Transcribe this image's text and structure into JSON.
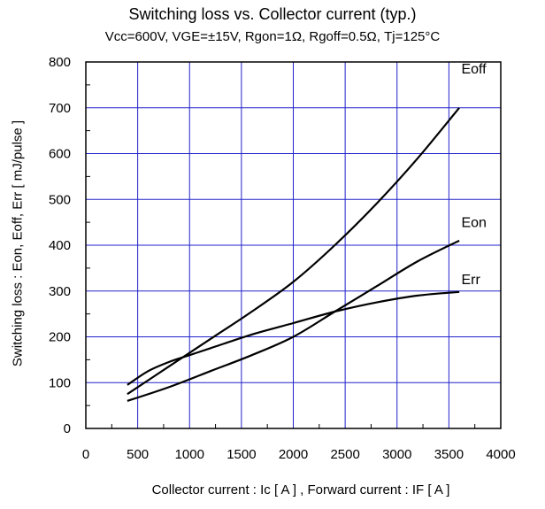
{
  "chart_data": {
    "type": "line",
    "title": "Switching loss  vs.  Collector current  (typ.)",
    "subtitle": "Vcc=600V, VGE=±15V, Rgon=1Ω, Rgoff=0.5Ω, Tj=125°C",
    "xlabel": "Collector current  :  Ic  [ A ] , Forward current  :  IF  [ A ]",
    "ylabel": "Switching loss  :  Eon, Eoff, Err  [ mJ/pulse ]",
    "xlim": [
      0,
      4000
    ],
    "ylim": [
      0,
      800
    ],
    "xticks": [
      0,
      500,
      1000,
      1500,
      2000,
      2500,
      3000,
      3500,
      4000
    ],
    "yticks": [
      0,
      100,
      200,
      300,
      400,
      500,
      600,
      700,
      800
    ],
    "grid": true,
    "colors": {
      "grid": "#2222cc",
      "line": "#000000"
    },
    "series": [
      {
        "name": "Eoff",
        "x": [
          400,
          800,
          1200,
          1600,
          2000,
          2400,
          2800,
          3200,
          3600
        ],
        "y": [
          75,
          135,
          195,
          255,
          320,
          400,
          490,
          590,
          700
        ],
        "label_pos": [
          3620,
          775
        ]
      },
      {
        "name": "Eon",
        "x": [
          400,
          800,
          1200,
          1600,
          2000,
          2400,
          2800,
          3200,
          3600
        ],
        "y": [
          60,
          90,
          125,
          160,
          200,
          255,
          310,
          365,
          410
        ],
        "label_pos": [
          3620,
          440
        ]
      },
      {
        "name": "Err",
        "x": [
          400,
          600,
          800,
          1000,
          1200,
          1600,
          2000,
          2400,
          2800,
          3200,
          3600
        ],
        "y": [
          95,
          125,
          145,
          160,
          175,
          205,
          230,
          255,
          275,
          290,
          298
        ],
        "label_pos": [
          3620,
          315
        ]
      }
    ]
  }
}
